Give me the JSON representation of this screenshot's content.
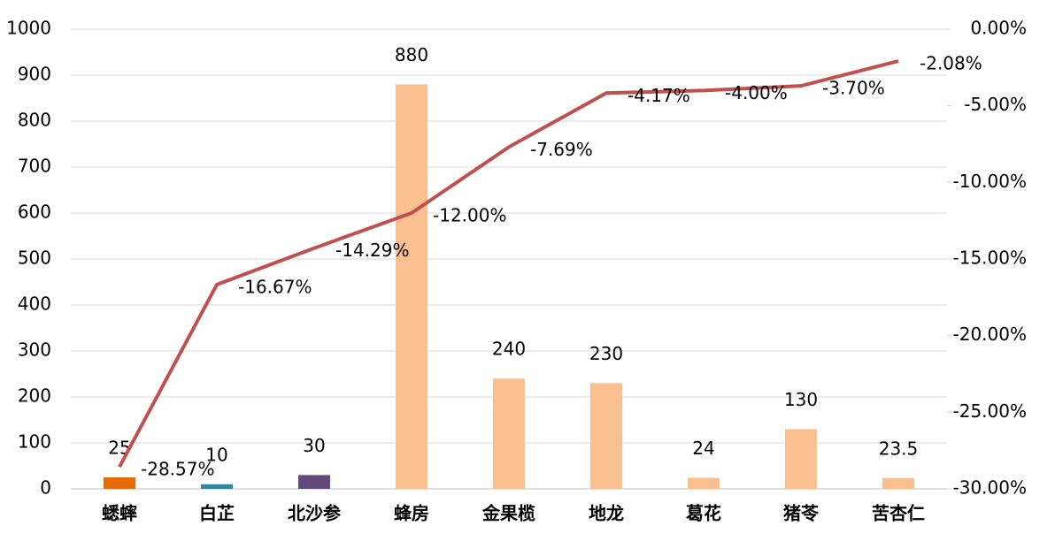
{
  "chart_data": {
    "type": "bar",
    "categories": [
      "蟋蟀",
      "白芷",
      "北沙参",
      "蜂房",
      "金果榄",
      "地龙",
      "葛花",
      "猪苓",
      "苦杏仁"
    ],
    "series": [
      {
        "type": "bar",
        "values": [
          25,
          10,
          30,
          880,
          240,
          230,
          24,
          130,
          23.5
        ],
        "colors": [
          "#e46c0a",
          "#31859c",
          "#604a7b",
          "#fac090",
          "#fac090",
          "#fac090",
          "#fac090",
          "#fac090",
          "#fac090"
        ]
      },
      {
        "type": "line",
        "axis": "y2",
        "color": "#c0504d",
        "values": [
          -28.57,
          -16.67,
          -14.29,
          -12.0,
          -7.69,
          -4.17,
          -4.0,
          -3.7,
          -2.08
        ],
        "value_labels": [
          "-28.57%",
          "-16.67%",
          "-14.29%",
          "-12.00%",
          "-7.69%",
          "-4.17%",
          "-4.00%",
          "-3.70%",
          "-2.08%"
        ]
      }
    ],
    "ylim": [
      0,
      1000
    ],
    "yticks": [
      0,
      100,
      200,
      300,
      400,
      500,
      600,
      700,
      800,
      900,
      1000
    ],
    "y2lim": [
      -30,
      0
    ],
    "y2ticks": [
      {
        "value": 0,
        "label": "0.00%"
      },
      {
        "value": -5,
        "label": "-5.00%"
      },
      {
        "value": -10,
        "label": "-10.00%"
      },
      {
        "value": -15,
        "label": "-15.00%"
      },
      {
        "value": -20,
        "label": "-20.00%"
      },
      {
        "value": -25,
        "label": "-25.00%"
      },
      {
        "value": -30,
        "label": "-30.00%"
      }
    ],
    "grid": true
  }
}
